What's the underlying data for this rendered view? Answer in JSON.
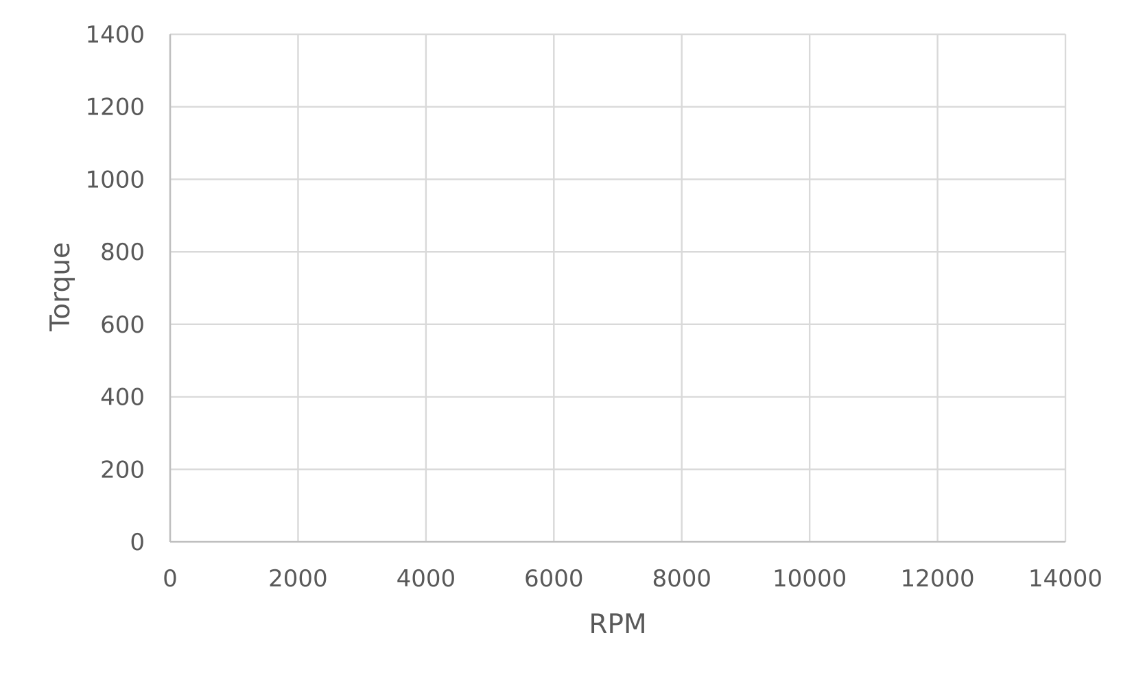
{
  "chart_data": {
    "type": "scatter",
    "title": "",
    "xlabel": "RPM",
    "ylabel": "Torque",
    "xlim": [
      0,
      14000
    ],
    "ylim": [
      0,
      1400
    ],
    "x_ticks": [
      0,
      2000,
      4000,
      6000,
      8000,
      10000,
      12000,
      14000
    ],
    "y_ticks": [
      0,
      200,
      400,
      600,
      800,
      1000,
      1200,
      1400
    ],
    "x_tick_labels": [
      "0",
      "2000",
      "4000",
      "6000",
      "8000",
      "10000",
      "12000",
      "14000"
    ],
    "y_tick_labels": [
      "0",
      "200",
      "400",
      "600",
      "800",
      "1000",
      "1200",
      "1400"
    ],
    "series": [],
    "grid": true,
    "legend": "none",
    "colors": {
      "gridline": "#d9d9d9",
      "axis": "#bfbfbf",
      "text": "#595959"
    }
  }
}
